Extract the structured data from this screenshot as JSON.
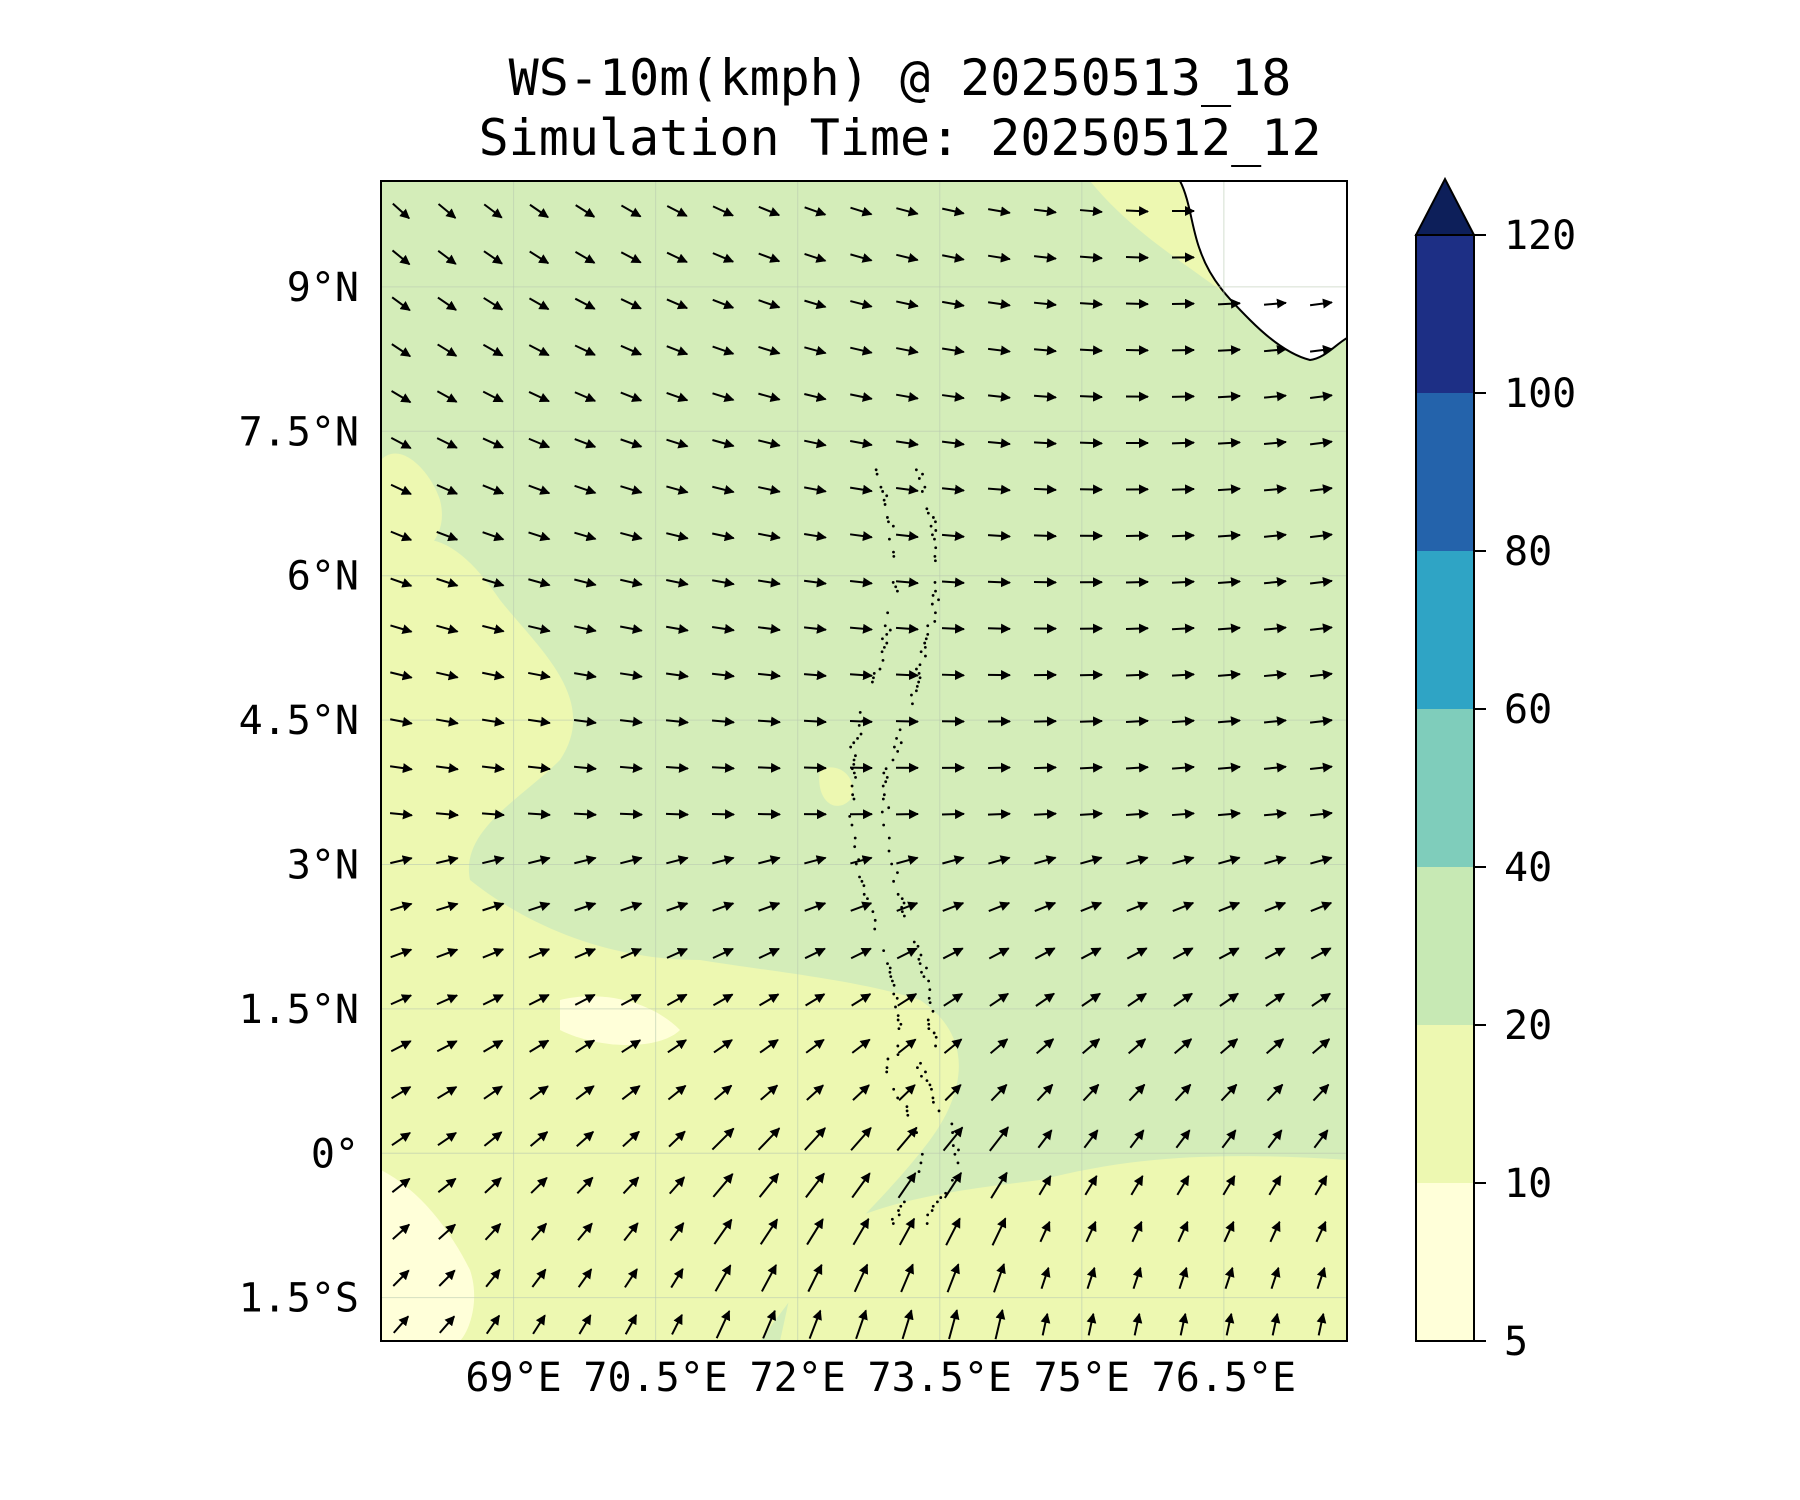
{
  "title": {
    "line1": "WS-10m(kmph) @ 20250513_18",
    "line2": "Simulation Time: 20250512_12"
  },
  "map": {
    "extent": {
      "lon_min": 67.6,
      "lon_max": 77.8,
      "lat_min": -1.95,
      "lat_max": 10.1
    },
    "x_ticks": [
      {
        "value": 69,
        "label": "69°E"
      },
      {
        "value": 70.5,
        "label": "70.5°E"
      },
      {
        "value": 72,
        "label": "72°E"
      },
      {
        "value": 73.5,
        "label": "73.5°E"
      },
      {
        "value": 75,
        "label": "75°E"
      },
      {
        "value": 76.5,
        "label": "76.5°E"
      }
    ],
    "y_ticks": [
      {
        "value": 9,
        "label": "9°N"
      },
      {
        "value": 7.5,
        "label": "7.5°N"
      },
      {
        "value": 6,
        "label": "6°N"
      },
      {
        "value": 4.5,
        "label": "4.5°N"
      },
      {
        "value": 3,
        "label": "3°N"
      },
      {
        "value": 1.5,
        "label": "1.5°N"
      },
      {
        "value": 0,
        "label": "0°"
      },
      {
        "value": -1.5,
        "label": "1.5°S"
      }
    ],
    "gridlines": true,
    "variable": "10 m wind speed (kmph) filled contours with wind direction vectors",
    "colors": {
      "land": "#ffffff",
      "coastline": "#000000",
      "ocean_base": "#d4edb9",
      "arrow": "#000000"
    }
  },
  "colorbar": {
    "levels": [
      5,
      10,
      20,
      40,
      60,
      80,
      100,
      120
    ],
    "tick_labels": [
      "5",
      "10",
      "20",
      "40",
      "60",
      "80",
      "100",
      "120"
    ],
    "colors": [
      "#ffffd9",
      "#edf8b1",
      "#c7e9b4",
      "#7fcdbb",
      "#2fa4c5",
      "#2463ab",
      "#1d2f85"
    ],
    "extend_color": "#0d1f5a",
    "extend": "max"
  }
}
